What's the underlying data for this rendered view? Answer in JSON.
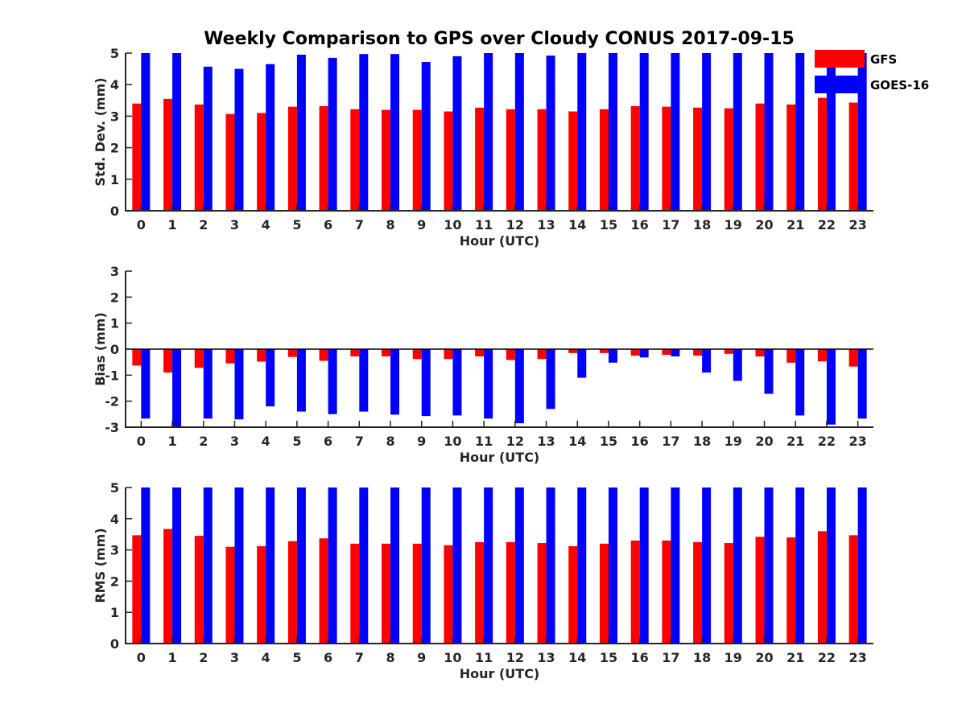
{
  "title": "Weekly Comparison to GPS over Cloudy CONUS 2017-09-15",
  "legend": {
    "placement": "top-right",
    "entries": [
      {
        "label": "GFS",
        "color": "#ff0000"
      },
      {
        "label": "GOES-16",
        "color": "#0000ff"
      }
    ]
  },
  "chart_data": [
    {
      "type": "bar",
      "xlabel": "Hour (UTC)",
      "ylabel": "Std. Dev. (mm)",
      "ylim": [
        0,
        5
      ],
      "yticks": [
        0,
        1,
        2,
        3,
        4,
        5
      ],
      "categories": [
        0,
        1,
        2,
        3,
        4,
        5,
        6,
        7,
        8,
        9,
        10,
        11,
        12,
        13,
        14,
        15,
        16,
        17,
        18,
        19,
        20,
        21,
        22,
        23
      ],
      "series": [
        {
          "name": "GFS",
          "color": "#ff0000",
          "values": [
            3.4,
            3.55,
            3.37,
            3.07,
            3.1,
            3.3,
            3.32,
            3.22,
            3.2,
            3.2,
            3.15,
            3.27,
            3.22,
            3.22,
            3.15,
            3.22,
            3.32,
            3.3,
            3.27,
            3.25,
            3.4,
            3.37,
            3.58,
            3.43
          ]
        },
        {
          "name": "GOES-16",
          "color": "#0000ff",
          "values": [
            5.0,
            5.0,
            4.57,
            4.5,
            4.65,
            4.95,
            4.85,
            4.97,
            4.97,
            4.72,
            4.9,
            5.0,
            5.0,
            4.92,
            5.0,
            5.0,
            5.0,
            5.0,
            5.0,
            5.0,
            5.0,
            5.0,
            5.0,
            5.0
          ]
        }
      ]
    },
    {
      "type": "bar",
      "xlabel": "Hour (UTC)",
      "ylabel": "Bias (mm)",
      "ylim": [
        -3,
        3
      ],
      "yticks": [
        -3,
        -2,
        -1,
        0,
        1,
        2,
        3
      ],
      "zero_line": true,
      "categories": [
        0,
        1,
        2,
        3,
        4,
        5,
        6,
        7,
        8,
        9,
        10,
        11,
        12,
        13,
        14,
        15,
        16,
        17,
        18,
        19,
        20,
        21,
        22,
        23
      ],
      "series": [
        {
          "name": "GFS",
          "color": "#ff0000",
          "values": [
            -0.63,
            -0.9,
            -0.72,
            -0.55,
            -0.48,
            -0.3,
            -0.45,
            -0.28,
            -0.28,
            -0.38,
            -0.38,
            -0.28,
            -0.42,
            -0.38,
            -0.15,
            -0.15,
            -0.25,
            -0.22,
            -0.25,
            -0.18,
            -0.28,
            -0.52,
            -0.47,
            -0.67
          ]
        },
        {
          "name": "GOES-16",
          "color": "#0000ff",
          "values": [
            -2.67,
            -3.0,
            -2.67,
            -2.7,
            -2.2,
            -2.4,
            -2.5,
            -2.4,
            -2.52,
            -2.57,
            -2.55,
            -2.67,
            -2.85,
            -2.3,
            -1.1,
            -0.52,
            -0.32,
            -0.28,
            -0.9,
            -1.22,
            -1.72,
            -2.55,
            -2.9,
            -2.67
          ]
        }
      ]
    },
    {
      "type": "bar",
      "xlabel": "Hour (UTC)",
      "ylabel": "RMS (mm)",
      "ylim": [
        0,
        5
      ],
      "yticks": [
        0,
        1,
        2,
        3,
        4,
        5
      ],
      "categories": [
        0,
        1,
        2,
        3,
        4,
        5,
        6,
        7,
        8,
        9,
        10,
        11,
        12,
        13,
        14,
        15,
        16,
        17,
        18,
        19,
        20,
        21,
        22,
        23
      ],
      "series": [
        {
          "name": "GFS",
          "color": "#ff0000",
          "values": [
            3.47,
            3.67,
            3.45,
            3.1,
            3.12,
            3.28,
            3.37,
            3.2,
            3.2,
            3.2,
            3.15,
            3.25,
            3.25,
            3.22,
            3.12,
            3.2,
            3.3,
            3.3,
            3.25,
            3.22,
            3.42,
            3.4,
            3.6,
            3.47
          ]
        },
        {
          "name": "GOES-16",
          "color": "#0000ff",
          "values": [
            5,
            5,
            5,
            5,
            5,
            5,
            5,
            5,
            5,
            5,
            5,
            5,
            5,
            5,
            5,
            5,
            5,
            5,
            5,
            5,
            5,
            5,
            5,
            5
          ]
        }
      ]
    }
  ]
}
